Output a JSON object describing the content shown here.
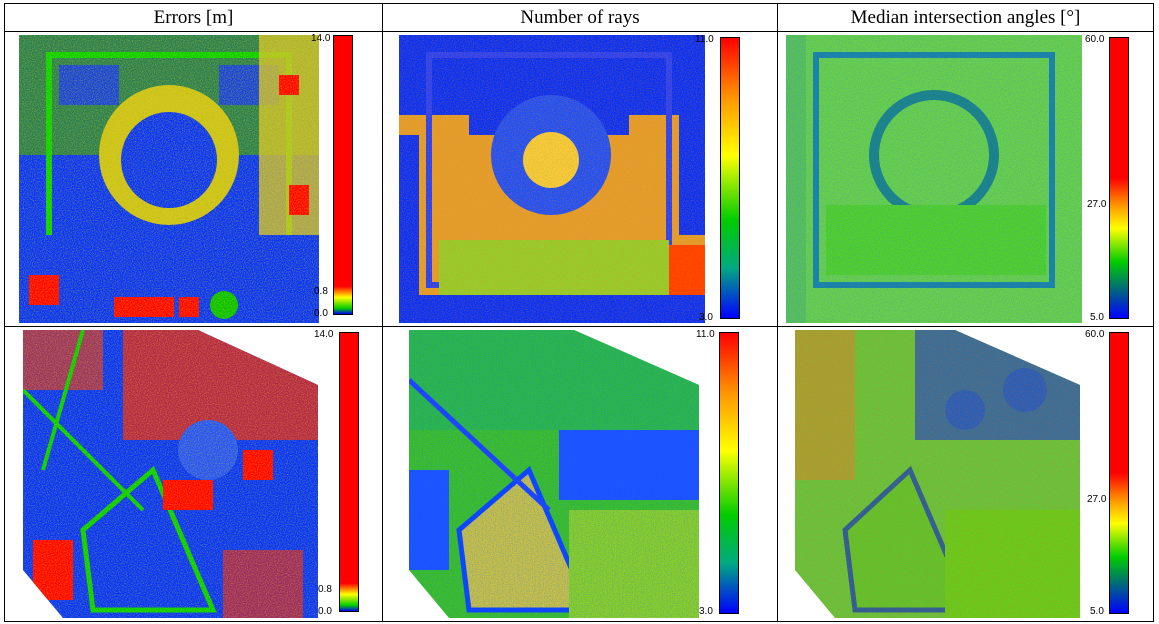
{
  "headers": [
    "Errors [m]",
    "Number of rays",
    "Median intersection angles [°]"
  ],
  "colorbars": {
    "errors": {
      "max": "14.0",
      "mid": "0.8",
      "min": "0.0"
    },
    "rays": {
      "max": "11.0",
      "min": "3.0"
    },
    "angles": {
      "max": "60.0",
      "mid": "27.0",
      "min": "5.0"
    }
  },
  "colors": {
    "red": "#ff0000",
    "orange": "#ff9900",
    "yellow": "#ffff00",
    "green": "#00cc00",
    "blue": "#0000ff",
    "dark_blue": "#00008b"
  }
}
